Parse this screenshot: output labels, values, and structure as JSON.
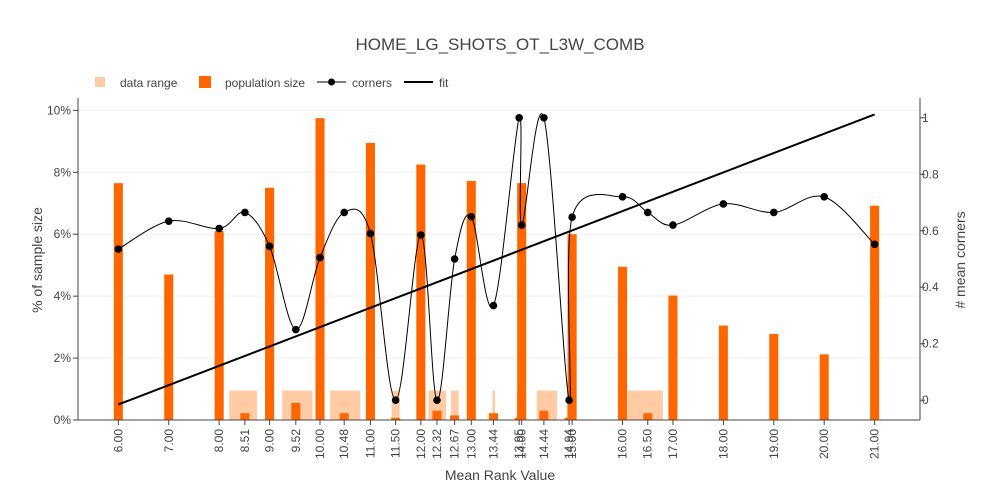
{
  "chart_data": {
    "type": "bar",
    "title": "HOME_LG_SHOTS_OT_L3W_COMB",
    "xlabel": "Mean Rank Value",
    "ylabel": "% of sample size",
    "y2label": "# mean corners",
    "xlim": [
      5.2,
      21.9
    ],
    "ylim": [
      0,
      10.4
    ],
    "y2lim": [
      -0.07,
      1.07
    ],
    "x_ticks": [
      {
        "value": 6.0,
        "label": "6.00"
      },
      {
        "value": 7.0,
        "label": "7.00"
      },
      {
        "value": 8.0,
        "label": "8.00"
      },
      {
        "value": 8.51,
        "label": "8.51"
      },
      {
        "value": 9.0,
        "label": "9.00"
      },
      {
        "value": 9.52,
        "label": "9.52"
      },
      {
        "value": 10.0,
        "label": "10.00"
      },
      {
        "value": 10.48,
        "label": "10.48"
      },
      {
        "value": 11.0,
        "label": "11.00"
      },
      {
        "value": 11.5,
        "label": "11.50"
      },
      {
        "value": 12.0,
        "label": "12.00"
      },
      {
        "value": 12.32,
        "label": "12.32"
      },
      {
        "value": 12.67,
        "label": "12.67"
      },
      {
        "value": 13.0,
        "label": "13.00"
      },
      {
        "value": 13.44,
        "label": "13.44"
      },
      {
        "value": 13.95,
        "label": "13.95"
      },
      {
        "value": 14.0,
        "label": "14.00"
      },
      {
        "value": 14.44,
        "label": "14.44"
      },
      {
        "value": 14.94,
        "label": "14.94"
      },
      {
        "value": 15.0,
        "label": "15.00"
      },
      {
        "value": 16.0,
        "label": "16.00"
      },
      {
        "value": 16.5,
        "label": "16.50"
      },
      {
        "value": 17.0,
        "label": "17.00"
      },
      {
        "value": 18.0,
        "label": "18.00"
      },
      {
        "value": 19.0,
        "label": "19.00"
      },
      {
        "value": 20.0,
        "label": "20.00"
      },
      {
        "value": 21.0,
        "label": "21.00"
      }
    ],
    "y_ticks": [
      {
        "value": 0,
        "label": "0%"
      },
      {
        "value": 2,
        "label": "2%"
      },
      {
        "value": 4,
        "label": "4%"
      },
      {
        "value": 6,
        "label": "6%"
      },
      {
        "value": 8,
        "label": "8%"
      },
      {
        "value": 10,
        "label": "10%"
      }
    ],
    "y2_ticks": [
      {
        "value": 0,
        "label": "0"
      },
      {
        "value": 0.2,
        "label": "0.2"
      },
      {
        "value": 0.4,
        "label": "0.4"
      },
      {
        "value": 0.6,
        "label": "0.6"
      },
      {
        "value": 0.8,
        "label": "0.8"
      },
      {
        "value": 1,
        "label": "1"
      }
    ],
    "legend": {
      "placement": "top-left",
      "entries": [
        {
          "key": "data_range",
          "label": "data range"
        },
        {
          "key": "population",
          "label": "population size"
        },
        {
          "key": "corners",
          "label": "corners"
        },
        {
          "key": "fit",
          "label": "fit"
        }
      ]
    },
    "colors": {
      "data_range": "#ffcba4",
      "population": "#ff6600",
      "corners": "#000000",
      "fit": "#000000",
      "grid": "#eeeeee",
      "text": "#444444"
    },
    "series": [
      {
        "key": "data_range",
        "type": "bar",
        "bars": [
          {
            "x0": 8.2,
            "x1": 8.75,
            "value": 0.95
          },
          {
            "x0": 9.25,
            "x1": 9.85,
            "value": 0.95
          },
          {
            "x0": 10.2,
            "x1": 10.8,
            "value": 0.95
          },
          {
            "x0": 11.42,
            "x1": 11.58,
            "value": 0.95
          },
          {
            "x0": 12.15,
            "x1": 12.5,
            "value": 0.95
          },
          {
            "x0": 12.6,
            "x1": 12.75,
            "value": 0.95
          },
          {
            "x0": 13.42,
            "x1": 13.47,
            "value": 0.95
          },
          {
            "x0": 13.9,
            "x1": 14.0,
            "value": 0.95
          },
          {
            "x0": 14.3,
            "x1": 14.7,
            "value": 0.95
          },
          {
            "x0": 14.9,
            "x1": 15.0,
            "value": 0.95
          },
          {
            "x0": 16.1,
            "x1": 16.8,
            "value": 0.95
          }
        ]
      },
      {
        "key": "population",
        "type": "bar",
        "width": 0.18,
        "points": [
          {
            "x": 6.0,
            "value": 7.65
          },
          {
            "x": 7.0,
            "value": 4.7
          },
          {
            "x": 8.0,
            "value": 6.1
          },
          {
            "x": 8.51,
            "value": 0.22
          },
          {
            "x": 9.0,
            "value": 7.5
          },
          {
            "x": 9.52,
            "value": 0.55
          },
          {
            "x": 10.0,
            "value": 9.75
          },
          {
            "x": 10.48,
            "value": 0.22
          },
          {
            "x": 11.0,
            "value": 8.95
          },
          {
            "x": 11.5,
            "value": 0.07
          },
          {
            "x": 12.0,
            "value": 8.25
          },
          {
            "x": 12.32,
            "value": 0.3
          },
          {
            "x": 12.67,
            "value": 0.15
          },
          {
            "x": 13.0,
            "value": 7.72
          },
          {
            "x": 13.44,
            "value": 0.22
          },
          {
            "x": 13.95,
            "value": 0.07
          },
          {
            "x": 14.0,
            "value": 7.65
          },
          {
            "x": 14.44,
            "value": 0.3
          },
          {
            "x": 14.94,
            "value": 0.07
          },
          {
            "x": 15.0,
            "value": 6.0
          },
          {
            "x": 16.0,
            "value": 4.95
          },
          {
            "x": 16.5,
            "value": 0.22
          },
          {
            "x": 17.0,
            "value": 4.02
          },
          {
            "x": 18.0,
            "value": 3.05
          },
          {
            "x": 19.0,
            "value": 2.78
          },
          {
            "x": 20.0,
            "value": 2.12
          },
          {
            "x": 21.0,
            "value": 6.92
          }
        ]
      },
      {
        "key": "corners",
        "type": "line",
        "axis": "y2",
        "points": [
          {
            "x": 6.0,
            "y": 0.535
          },
          {
            "x": 7.0,
            "y": 0.634
          },
          {
            "x": 8.0,
            "y": 0.608
          },
          {
            "x": 8.51,
            "y": 0.665
          },
          {
            "x": 9.0,
            "y": 0.545
          },
          {
            "x": 9.52,
            "y": 0.25
          },
          {
            "x": 10.0,
            "y": 0.505
          },
          {
            "x": 10.48,
            "y": 0.665
          },
          {
            "x": 11.0,
            "y": 0.59
          },
          {
            "x": 11.5,
            "y": 0.0
          },
          {
            "x": 12.0,
            "y": 0.585
          },
          {
            "x": 12.32,
            "y": 0.0
          },
          {
            "x": 12.67,
            "y": 0.5
          },
          {
            "x": 13.0,
            "y": 0.65
          },
          {
            "x": 13.44,
            "y": 0.335
          },
          {
            "x": 13.95,
            "y": 1.0
          },
          {
            "x": 14.0,
            "y": 0.62
          },
          {
            "x": 14.44,
            "y": 1.0
          },
          {
            "x": 14.94,
            "y": 0.0
          },
          {
            "x": 15.0,
            "y": 0.648
          },
          {
            "x": 16.0,
            "y": 0.72
          },
          {
            "x": 16.5,
            "y": 0.665
          },
          {
            "x": 17.0,
            "y": 0.62
          },
          {
            "x": 18.0,
            "y": 0.695
          },
          {
            "x": 19.0,
            "y": 0.665
          },
          {
            "x": 20.0,
            "y": 0.72
          },
          {
            "x": 21.0,
            "y": 0.552
          }
        ]
      },
      {
        "key": "fit",
        "type": "line",
        "axis": "y2",
        "points": [
          {
            "x": 6.0,
            "y": -0.015
          },
          {
            "x": 21.0,
            "y": 1.012
          }
        ]
      }
    ]
  }
}
